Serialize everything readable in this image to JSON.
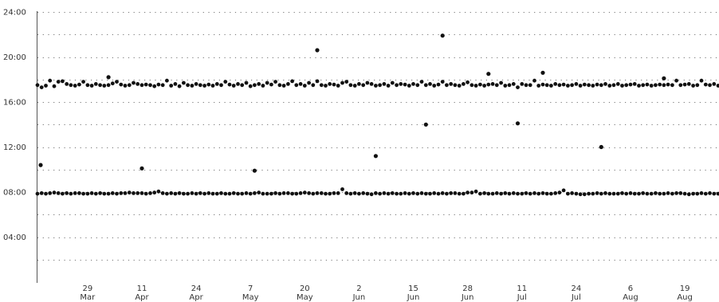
{
  "chart_data": {
    "type": "scatter",
    "title": "",
    "xlabel": "",
    "ylabel": "",
    "grid": true,
    "colors": {
      "points": "#111111",
      "grid": "#777777",
      "axis": "#555555",
      "text": "#333333"
    },
    "x_domain": [
      "2022-03-17",
      "2022-08-27"
    ],
    "y_range": [
      0,
      24
    ],
    "y_ticks": [
      {
        "value": 4,
        "label": "04:00"
      },
      {
        "value": 8,
        "label": "08:00"
      },
      {
        "value": 12,
        "label": "12:00"
      },
      {
        "value": 16,
        "label": "16:00"
      },
      {
        "value": 20,
        "label": "20:00"
      },
      {
        "value": 24,
        "label": "24:00"
      }
    ],
    "y_minor_ticks": [
      2,
      6,
      10,
      14,
      18,
      22
    ],
    "x_ticks": [
      {
        "date": "2022-03-29",
        "day": "29",
        "month": "Mar"
      },
      {
        "date": "2022-04-11",
        "day": "11",
        "month": "Apr"
      },
      {
        "date": "2022-04-24",
        "day": "24",
        "month": "Apr"
      },
      {
        "date": "2022-05-07",
        "day": "7",
        "month": "May"
      },
      {
        "date": "2022-05-20",
        "day": "20",
        "month": "May"
      },
      {
        "date": "2022-06-02",
        "day": "2",
        "month": "Jun"
      },
      {
        "date": "2022-06-15",
        "day": "15",
        "month": "Jun"
      },
      {
        "date": "2022-06-28",
        "day": "28",
        "month": "Jun"
      },
      {
        "date": "2022-07-11",
        "day": "11",
        "month": "Jul"
      },
      {
        "date": "2022-07-24",
        "day": "24",
        "month": "Jul"
      },
      {
        "date": "2022-08-06",
        "day": "6",
        "month": "Aug"
      },
      {
        "date": "2022-08-19",
        "day": "19",
        "month": "Aug"
      }
    ],
    "series": [
      {
        "start_date": "2022-03-17",
        "values": [
          7.85,
          7.9,
          7.85,
          7.9,
          7.95,
          7.9,
          7.85,
          7.9,
          7.85,
          7.9,
          7.9,
          7.85,
          7.85,
          7.9,
          7.85,
          7.9,
          7.85,
          7.85,
          7.9,
          7.85,
          7.9,
          7.9,
          7.95,
          7.9,
          7.9,
          7.9,
          7.85,
          7.9,
          7.95,
          8.05,
          7.9,
          7.85,
          7.9,
          7.85,
          7.9,
          7.85,
          7.85,
          7.9,
          7.85,
          7.9,
          7.85,
          7.9,
          7.85,
          7.85,
          7.9,
          7.85,
          7.85,
          7.9,
          7.85,
          7.85,
          7.9,
          7.85,
          7.9,
          7.95,
          7.85,
          7.85,
          7.85,
          7.9,
          7.85,
          7.9,
          7.9,
          7.85,
          7.85,
          7.9,
          7.95,
          7.9,
          7.85,
          7.9,
          7.9,
          7.85,
          7.85,
          7.9,
          7.9,
          8.25,
          7.9,
          7.85,
          7.9,
          7.85,
          7.9,
          7.85,
          7.8,
          7.9,
          7.85,
          7.9,
          7.85,
          7.9,
          7.85,
          7.85,
          7.9,
          7.85,
          7.9,
          7.85,
          7.9,
          7.85,
          7.85,
          7.9,
          7.85,
          7.9,
          7.85,
          7.9,
          7.9,
          7.85,
          7.85,
          7.95,
          7.95,
          8.05,
          7.85,
          7.9,
          7.85,
          7.85,
          7.9,
          7.85,
          7.9,
          7.85,
          7.9,
          7.85,
          7.85,
          7.9,
          7.85,
          7.9,
          7.85,
          7.9,
          7.85,
          7.85,
          7.9,
          7.95,
          8.15,
          7.85,
          7.9,
          7.85,
          7.8,
          7.8,
          7.85,
          7.85,
          7.9,
          7.85,
          7.9,
          7.85,
          7.85,
          7.85,
          7.9,
          7.85,
          7.9,
          7.85,
          7.85,
          7.9,
          7.85,
          7.85,
          7.9,
          7.85,
          7.85,
          7.9,
          7.85,
          7.9,
          7.9,
          7.85,
          7.8,
          7.85,
          7.85,
          7.9,
          7.85,
          7.9,
          7.85,
          7.85,
          7.9,
          7.85,
          7.8,
          7.85,
          7.9
        ]
      },
      {
        "start_date": "2022-03-17",
        "values": [
          17.5,
          17.3,
          17.45,
          17.9,
          17.4,
          17.8,
          17.85,
          17.6,
          17.5,
          17.45,
          17.55,
          17.8,
          17.5,
          17.45,
          17.6,
          17.5,
          17.45,
          17.5,
          17.65,
          17.8,
          17.55,
          17.45,
          17.5,
          17.7,
          17.6,
          17.5,
          17.55,
          17.5,
          17.4,
          17.55,
          17.5,
          17.9,
          17.45,
          17.6,
          17.4,
          17.7,
          17.5,
          17.45,
          17.6,
          17.5,
          17.45,
          17.55,
          17.45,
          17.6,
          17.5,
          17.8,
          17.55,
          17.45,
          17.6,
          17.5,
          17.7,
          17.4,
          17.5,
          17.6,
          17.45,
          17.7,
          17.55,
          17.8,
          17.5,
          17.45,
          17.6,
          17.85,
          17.5,
          17.6,
          17.45,
          17.7,
          17.5,
          17.85,
          17.5,
          17.45,
          17.6,
          17.55,
          17.45,
          17.7,
          17.8,
          17.5,
          17.45,
          17.6,
          17.5,
          17.7,
          17.6,
          17.45,
          17.5,
          17.6,
          17.45,
          17.7,
          17.5,
          17.6,
          17.55,
          17.45,
          17.6,
          17.5,
          17.8,
          17.5,
          17.6,
          17.45,
          17.55,
          17.8,
          17.5,
          17.6,
          17.5,
          17.45,
          17.6,
          17.75,
          17.5,
          17.45,
          17.55,
          17.45,
          17.55,
          17.6,
          17.5,
          17.7,
          17.45,
          17.5,
          17.6,
          17.3,
          17.6,
          17.5,
          17.5,
          17.9,
          17.45,
          17.55,
          17.5,
          17.45,
          17.6,
          17.5,
          17.55,
          17.45,
          17.5,
          17.6,
          17.45,
          17.55,
          17.5,
          17.45,
          17.55,
          17.5,
          17.6,
          17.45,
          17.5,
          17.6,
          17.45,
          17.5,
          17.55,
          17.6,
          17.45,
          17.5,
          17.55,
          17.45,
          17.5,
          17.55,
          17.5,
          17.55,
          17.5,
          17.9,
          17.5,
          17.55,
          17.6,
          17.45,
          17.5,
          17.9,
          17.55,
          17.5,
          17.6,
          17.45,
          17.55,
          17.8,
          17.5,
          17.45,
          17.3
        ]
      }
    ],
    "outliers": [
      {
        "date": "2022-03-17",
        "value": 10.4
      },
      {
        "date": "2022-04-11",
        "value": 10.1
      },
      {
        "date": "2022-04-03",
        "value": 18.2
      },
      {
        "date": "2022-05-08",
        "value": 9.9
      },
      {
        "date": "2022-05-23",
        "value": 20.6
      },
      {
        "date": "2022-06-06",
        "value": 11.2
      },
      {
        "date": "2022-06-18",
        "value": 14.0
      },
      {
        "date": "2022-06-22",
        "value": 21.9
      },
      {
        "date": "2022-07-03",
        "value": 18.5
      },
      {
        "date": "2022-07-10",
        "value": 14.1
      },
      {
        "date": "2022-07-16",
        "value": 18.6
      },
      {
        "date": "2022-07-30",
        "value": 12.0
      },
      {
        "date": "2022-08-14",
        "value": 18.1
      }
    ]
  }
}
